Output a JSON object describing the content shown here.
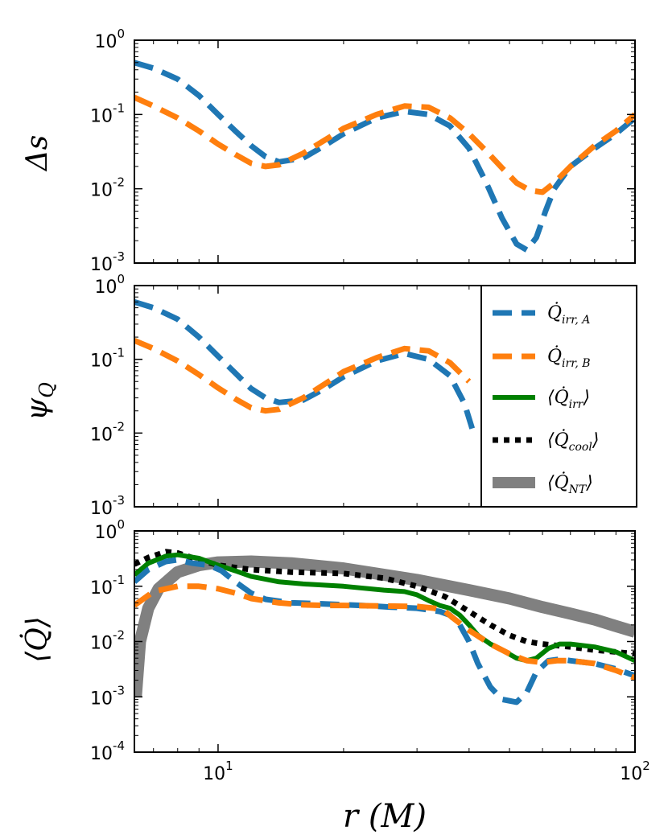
{
  "chart_data": [
    {
      "type": "line",
      "panel": "top",
      "ylabel": "Δs",
      "xscale": "log",
      "yscale": "log",
      "xlim": [
        6.3,
        100
      ],
      "ylim": [
        0.001,
        1
      ],
      "yticks": [
        "10^0",
        "10^-1",
        "10^-2",
        "10^-3"
      ],
      "series": [
        {
          "name": "Q̇_irr,A",
          "color": "#1f77b4",
          "style": "dashed",
          "x": [
            6.3,
            7,
            8,
            9,
            10,
            11,
            12,
            13,
            14,
            16,
            18,
            20,
            24,
            28,
            32,
            36,
            40,
            44,
            48,
            52,
            55,
            58,
            61,
            64,
            70,
            80,
            90,
            100
          ],
          "y": [
            0.5,
            0.42,
            0.3,
            0.18,
            0.1,
            0.06,
            0.038,
            0.027,
            0.023,
            0.026,
            0.038,
            0.055,
            0.09,
            0.11,
            0.1,
            0.07,
            0.035,
            0.012,
            0.004,
            0.0018,
            0.0015,
            0.0022,
            0.005,
            0.01,
            0.02,
            0.035,
            0.055,
            0.09
          ]
        },
        {
          "name": "Q̇_irr,B",
          "color": "#ff7f0e",
          "style": "dashed",
          "x": [
            6.3,
            7,
            8,
            9,
            10,
            11,
            12,
            13,
            14,
            16,
            18,
            20,
            24,
            28,
            32,
            36,
            40,
            44,
            48,
            52,
            56,
            60,
            64,
            70,
            80,
            90,
            100
          ],
          "y": [
            0.17,
            0.13,
            0.09,
            0.06,
            0.04,
            0.029,
            0.022,
            0.02,
            0.021,
            0.03,
            0.045,
            0.065,
            0.1,
            0.13,
            0.125,
            0.09,
            0.055,
            0.032,
            0.019,
            0.012,
            0.0095,
            0.009,
            0.012,
            0.02,
            0.038,
            0.06,
            0.1
          ]
        }
      ]
    },
    {
      "type": "line",
      "panel": "middle",
      "ylabel": "ψQ",
      "xscale": "log",
      "yscale": "log",
      "xlim": [
        6.3,
        100
      ],
      "ylim": [
        0.001,
        1
      ],
      "yticks": [
        "10^0",
        "10^-1",
        "10^-2",
        "10^-3"
      ],
      "series": [
        {
          "name": "Q̇_irr,A",
          "color": "#1f77b4",
          "style": "dashed",
          "x": [
            6.3,
            7,
            8,
            9,
            10,
            11,
            12,
            13,
            14,
            16,
            18,
            20,
            24,
            28,
            32,
            36,
            39,
            41
          ],
          "y": [
            0.6,
            0.5,
            0.35,
            0.2,
            0.11,
            0.065,
            0.04,
            0.03,
            0.026,
            0.028,
            0.04,
            0.058,
            0.095,
            0.12,
            0.1,
            0.06,
            0.025,
            0.01
          ]
        },
        {
          "name": "Q̇_irr,B",
          "color": "#ff7f0e",
          "style": "dashed",
          "x": [
            6.3,
            7,
            8,
            9,
            10,
            11,
            12,
            13,
            14,
            16,
            18,
            20,
            24,
            28,
            32,
            36,
            40
          ],
          "y": [
            0.18,
            0.14,
            0.095,
            0.062,
            0.041,
            0.029,
            0.022,
            0.02,
            0.021,
            0.03,
            0.046,
            0.068,
            0.105,
            0.14,
            0.13,
            0.09,
            0.05
          ]
        }
      ]
    },
    {
      "type": "line",
      "panel": "bottom",
      "ylabel": "⟨Q̇⟩",
      "xlabel": "r (M)",
      "xscale": "log",
      "yscale": "log",
      "xlim": [
        6.3,
        100
      ],
      "ylim": [
        0.0001,
        1
      ],
      "yticks": [
        "10^0",
        "10^-1",
        "10^-2",
        "10^-3",
        "10^-4"
      ],
      "xticks": [
        "10^1",
        "10^2"
      ],
      "series": [
        {
          "name": "⟨Q̇_NT⟩",
          "color": "#808080",
          "style": "thick",
          "x": [
            6.35,
            6.5,
            6.8,
            7.2,
            8,
            9,
            10,
            12,
            15,
            20,
            30,
            40,
            50,
            60,
            70,
            80,
            90,
            100
          ],
          "y": [
            0.001,
            0.01,
            0.04,
            0.09,
            0.18,
            0.24,
            0.27,
            0.28,
            0.26,
            0.21,
            0.13,
            0.085,
            0.06,
            0.042,
            0.032,
            0.025,
            0.019,
            0.015
          ]
        },
        {
          "name": "⟨Q̇_cool⟩",
          "color": "#000000",
          "style": "dotted",
          "x": [
            6.3,
            6.8,
            7.5,
            8,
            9,
            10,
            12,
            15,
            20,
            25,
            30,
            35,
            40,
            45,
            50,
            55,
            60,
            70,
            80,
            90,
            100
          ],
          "y": [
            0.25,
            0.33,
            0.42,
            0.4,
            0.3,
            0.24,
            0.2,
            0.18,
            0.17,
            0.14,
            0.1,
            0.065,
            0.035,
            0.02,
            0.013,
            0.01,
            0.009,
            0.008,
            0.007,
            0.0065,
            0.006
          ]
        },
        {
          "name": "⟨Q̇_irr⟩",
          "color": "#008000",
          "style": "solid",
          "x": [
            6.3,
            6.8,
            7.5,
            8,
            9,
            10,
            11,
            12,
            14,
            16,
            20,
            25,
            28,
            30,
            32,
            34,
            36,
            38,
            40,
            42,
            45,
            48,
            52,
            55,
            58,
            62,
            66,
            70,
            80,
            90,
            100
          ],
          "y": [
            0.16,
            0.26,
            0.35,
            0.37,
            0.32,
            0.24,
            0.19,
            0.15,
            0.12,
            0.11,
            0.1,
            0.085,
            0.08,
            0.07,
            0.055,
            0.045,
            0.04,
            0.03,
            0.02,
            0.013,
            0.009,
            0.007,
            0.005,
            0.0045,
            0.005,
            0.0075,
            0.009,
            0.009,
            0.008,
            0.0065,
            0.0045
          ]
        },
        {
          "name": "Q̇_irr,A",
          "color": "#1f77b4",
          "style": "dashed",
          "x": [
            6.3,
            6.8,
            7.5,
            8,
            8.7,
            9.5,
            10.2,
            11,
            12,
            13,
            15,
            18,
            22,
            26,
            30,
            34,
            36,
            38,
            40,
            42,
            45,
            48,
            52,
            55,
            58,
            62,
            66,
            70,
            80,
            90,
            100
          ],
          "y": [
            0.12,
            0.2,
            0.28,
            0.3,
            0.26,
            0.24,
            0.19,
            0.12,
            0.075,
            0.058,
            0.05,
            0.048,
            0.045,
            0.042,
            0.04,
            0.035,
            0.03,
            0.02,
            0.01,
            0.004,
            0.0015,
            0.0009,
            0.0008,
            0.0012,
            0.0028,
            0.0045,
            0.0048,
            0.0045,
            0.004,
            0.0032,
            0.0024
          ]
        },
        {
          "name": "Q̇_irr,B",
          "color": "#ff7f0e",
          "style": "dashed",
          "x": [
            6.3,
            7,
            8,
            9,
            10,
            11,
            12,
            14,
            16,
            18,
            20,
            25,
            30,
            33,
            35,
            37,
            40,
            45,
            50,
            55,
            60,
            65,
            70,
            80,
            90,
            100
          ],
          "y": [
            0.045,
            0.08,
            0.1,
            0.1,
            0.09,
            0.075,
            0.06,
            0.05,
            0.046,
            0.045,
            0.045,
            0.044,
            0.043,
            0.04,
            0.035,
            0.025,
            0.016,
            0.009,
            0.006,
            0.0045,
            0.0042,
            0.0045,
            0.0045,
            0.004,
            0.003,
            0.0022
          ]
        }
      ]
    }
  ],
  "legend": {
    "items": [
      {
        "symbol": "Q̇",
        "sub": "irr, A",
        "wrap": false,
        "color": "#1f77b4",
        "style": "dashed"
      },
      {
        "symbol": "Q̇",
        "sub": "irr, B",
        "wrap": false,
        "color": "#ff7f0e",
        "style": "dashed"
      },
      {
        "symbol": "Q̇",
        "sub": "irr",
        "wrap": true,
        "color": "#008000",
        "style": "solid"
      },
      {
        "symbol": "Q̇",
        "sub": "cool",
        "wrap": true,
        "color": "#000000",
        "style": "dotted"
      },
      {
        "symbol": "Q̇",
        "sub": "NT",
        "wrap": true,
        "color": "#808080",
        "style": "thick"
      }
    ]
  },
  "labels": {
    "ylabel_top": "Δs",
    "ylabel_mid": "ψ",
    "ylabel_mid_sub": "Q",
    "ylabel_bot": "⟨Q̇⟩",
    "xlabel": "r (M)"
  },
  "ticks": {
    "top": [
      {
        "base": "10",
        "exp": "0"
      },
      {
        "base": "10",
        "exp": "-1"
      },
      {
        "base": "10",
        "exp": "-2"
      },
      {
        "base": "10",
        "exp": "-3"
      }
    ],
    "mid": [
      {
        "base": "10",
        "exp": "0"
      },
      {
        "base": "10",
        "exp": "-1"
      },
      {
        "base": "10",
        "exp": "-2"
      },
      {
        "base": "10",
        "exp": "-3"
      }
    ],
    "bot": [
      {
        "base": "10",
        "exp": "0"
      },
      {
        "base": "10",
        "exp": "-1"
      },
      {
        "base": "10",
        "exp": "-2"
      },
      {
        "base": "10",
        "exp": "-3"
      },
      {
        "base": "10",
        "exp": "-4"
      }
    ],
    "x": [
      {
        "base": "10",
        "exp": "1"
      },
      {
        "base": "10",
        "exp": "2"
      }
    ]
  }
}
